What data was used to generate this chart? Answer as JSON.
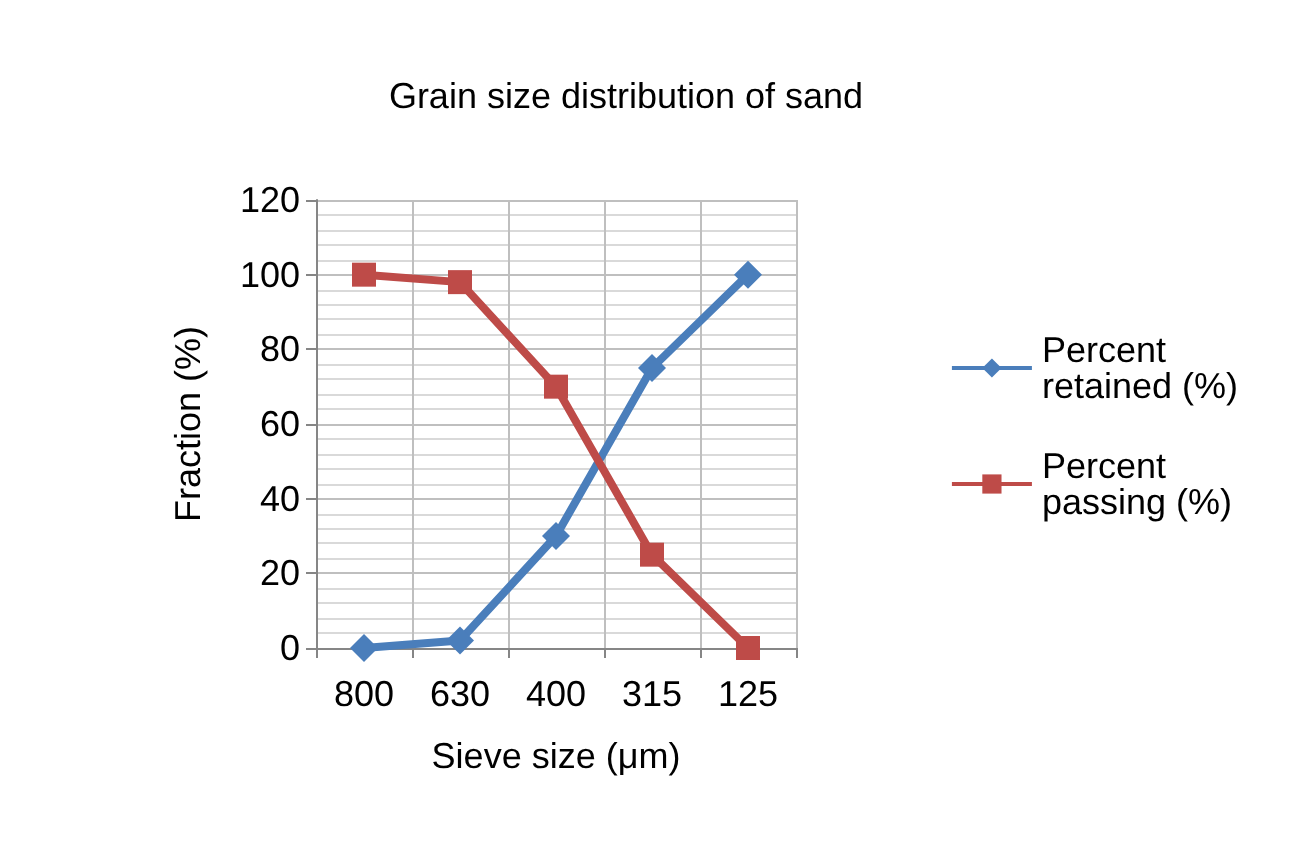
{
  "chart_data": {
    "type": "line",
    "title": "Grain size distribution of sand",
    "xlabel": "Sieve size (μm)",
    "ylabel": "Fraction (%)",
    "categories": [
      "800",
      "630",
      "400",
      "315",
      "125"
    ],
    "series": [
      {
        "name": "Percent retained (%)",
        "color": "#4a7ebb",
        "values": [
          0,
          2,
          30,
          75,
          100
        ],
        "marker": "diamond"
      },
      {
        "name": "Percent passing (%)",
        "color": "#be4b48",
        "values": [
          100,
          98,
          70,
          25,
          0
        ],
        "marker": "square"
      }
    ],
    "ylim": [
      0,
      120
    ],
    "yticks": [
      0,
      20,
      40,
      60,
      80,
      100,
      120
    ],
    "grid": true,
    "legend": "right",
    "line_style": "solid"
  }
}
